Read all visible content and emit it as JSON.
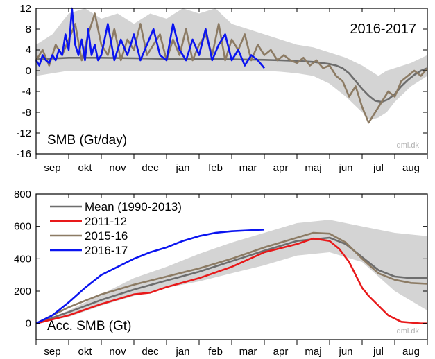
{
  "chart_data": [
    {
      "type": "line",
      "panel_label": "SMB (Gt/day)",
      "season_label": "2016-2017",
      "credit": "dmi.dk",
      "months": [
        "sep",
        "okt",
        "nov",
        "dec",
        "jan",
        "feb",
        "mar",
        "apr",
        "maj",
        "jun",
        "jul",
        "aug"
      ],
      "ylim": [
        -16,
        12
      ],
      "yticks": [
        12,
        8,
        4,
        0,
        -4,
        -8,
        -12,
        -16
      ],
      "colors": {
        "mean": "#6d6d6d",
        "s2015_16": "#8c7b64",
        "s2016_17": "#0a14f0",
        "band": "#d4d4d4"
      },
      "band_x": [
        0,
        0.5,
        1,
        1.5,
        2,
        2.5,
        3,
        3.5,
        4,
        4.5,
        5,
        5.5,
        6,
        6.5,
        7,
        7.5,
        8,
        8.5,
        9,
        9.5,
        10,
        10.25,
        10.5,
        10.75,
        11,
        11.5,
        12
      ],
      "band_lo": [
        -1,
        -0.5,
        0,
        0,
        0,
        0,
        0,
        0,
        0,
        0,
        0,
        0,
        0,
        0,
        0,
        -0.2,
        -0.5,
        -1,
        -2.5,
        -5,
        -8,
        -9.5,
        -9,
        -8,
        -6,
        -3,
        -1
      ],
      "band_hi": [
        5,
        7,
        11,
        12,
        10,
        11,
        9,
        11,
        10,
        12,
        11,
        12,
        9,
        8,
        7,
        6,
        5,
        4.5,
        3.5,
        2.5,
        1,
        0,
        -1,
        0,
        0.5,
        1.5,
        3
      ],
      "series": [
        {
          "name": "mean",
          "x": [
            0,
            1,
            2,
            3,
            4,
            5,
            6,
            7,
            7.5,
            8,
            8.5,
            9,
            9.2,
            9.4,
            9.6,
            9.8,
            10,
            10.2,
            10.4,
            10.6,
            10.8,
            11,
            11.2,
            11.4,
            11.6,
            11.8,
            12
          ],
          "values": [
            2.2,
            2.5,
            2.5,
            2.4,
            2.3,
            2.3,
            2.2,
            2.1,
            2.0,
            1.9,
            1.7,
            1.3,
            1.0,
            0.5,
            -0.5,
            -2,
            -3.5,
            -4.8,
            -5.8,
            -6,
            -5.5,
            -4.5,
            -3,
            -1.8,
            -0.8,
            0,
            0.5
          ]
        },
        {
          "name": "2015-16",
          "x": [
            0,
            0.2,
            0.4,
            0.6,
            0.8,
            1,
            1.2,
            1.4,
            1.6,
            1.8,
            2,
            2.2,
            2.4,
            2.6,
            2.8,
            3,
            3.2,
            3.4,
            3.6,
            3.8,
            4,
            4.2,
            4.4,
            4.6,
            4.8,
            5,
            5.2,
            5.4,
            5.6,
            5.8,
            6,
            6.2,
            6.4,
            6.6,
            6.8,
            7,
            7.2,
            7.4,
            7.6,
            7.8,
            8,
            8.2,
            8.4,
            8.6,
            8.8,
            9,
            9.2,
            9.4,
            9.6,
            9.8,
            10,
            10.2,
            10.4,
            10.6,
            10.8,
            11,
            11.2,
            11.4,
            11.6,
            11.8,
            12
          ],
          "values": [
            2,
            4,
            1,
            5,
            3,
            6,
            9,
            2,
            7,
            11,
            5,
            3,
            8,
            2,
            6,
            4,
            9,
            3,
            5,
            7,
            2,
            6,
            3,
            8,
            2,
            5,
            7,
            3,
            9,
            2,
            6,
            4,
            7,
            2,
            5,
            3,
            4,
            2,
            3,
            2,
            1.5,
            2.5,
            1,
            2,
            0.5,
            1,
            -1,
            -2,
            -5,
            -3,
            -7,
            -10,
            -8,
            -6,
            -4,
            -5,
            -2,
            -1,
            0,
            -1,
            0.5
          ]
        },
        {
          "name": "2016-17",
          "x": [
            0,
            0.1,
            0.2,
            0.3,
            0.4,
            0.5,
            0.6,
            0.7,
            0.8,
            0.9,
            1,
            1.1,
            1.2,
            1.3,
            1.4,
            1.5,
            1.6,
            1.7,
            1.8,
            1.9,
            2,
            2.2,
            2.4,
            2.6,
            2.8,
            3,
            3.2,
            3.4,
            3.6,
            3.8,
            4,
            4.2,
            4.4,
            4.6,
            4.8,
            5,
            5.2,
            5.4,
            5.6,
            5.8,
            6,
            6.2,
            6.4,
            6.6,
            6.8,
            7
          ],
          "values": [
            2,
            1,
            3,
            2,
            1.5,
            3,
            2,
            4,
            3,
            7,
            4,
            12,
            5,
            3,
            6,
            2,
            8,
            3,
            5,
            2,
            3,
            9,
            2,
            6,
            3,
            7,
            2,
            5,
            8,
            3,
            2,
            9,
            4,
            2,
            6,
            3,
            8,
            2,
            5,
            7,
            2,
            4,
            1,
            3,
            2,
            0.5
          ]
        }
      ]
    },
    {
      "type": "line",
      "panel_label": "Acc. SMB (Gt)",
      "credit": "dmi.dk",
      "months": [
        "sep",
        "okt",
        "nov",
        "dec",
        "jan",
        "feb",
        "mar",
        "apr",
        "maj",
        "jun",
        "jul",
        "aug"
      ],
      "ylim": [
        -100,
        800
      ],
      "yticks": [
        800,
        600,
        400,
        200,
        0
      ],
      "legend_position": "top-left",
      "colors": {
        "mean": "#6d6d6d",
        "s2011_12": "#e8191a",
        "s2015_16": "#8c7b64",
        "s2016_17": "#0a14f0",
        "band": "#d4d4d4"
      },
      "band_x": [
        0,
        1,
        2,
        3,
        4,
        5,
        6,
        7,
        8,
        9,
        10,
        11,
        12
      ],
      "band_lo": [
        0,
        40,
        110,
        170,
        220,
        260,
        310,
        360,
        420,
        440,
        380,
        200,
        80
      ],
      "band_hi": [
        0,
        80,
        180,
        280,
        350,
        430,
        500,
        560,
        620,
        640,
        600,
        560,
        540
      ],
      "series": [
        {
          "name": "Mean (1990-2013)",
          "x": [
            0,
            1,
            2,
            3,
            4,
            5,
            6,
            7,
            8,
            9,
            9.5,
            10,
            10.5,
            11,
            11.5,
            12
          ],
          "values": [
            0,
            70,
            145,
            210,
            265,
            320,
            385,
            450,
            510,
            530,
            490,
            410,
            330,
            290,
            280,
            280
          ]
        },
        {
          "name": "2011-12",
          "x": [
            0,
            1,
            2,
            3,
            3.5,
            4,
            5,
            6,
            7,
            8,
            8.5,
            9,
            9.3,
            9.6,
            9.8,
            10,
            10.2,
            10.5,
            10.8,
            11,
            11.2,
            11.5,
            11.8,
            12
          ],
          "values": [
            0,
            50,
            120,
            180,
            190,
            225,
            280,
            350,
            440,
            490,
            525,
            510,
            460,
            380,
            300,
            220,
            170,
            110,
            50,
            30,
            10,
            5,
            0,
            0
          ]
        },
        {
          "name": "2015-16",
          "x": [
            0,
            1,
            2,
            3,
            4,
            5,
            6,
            7,
            7.5,
            8,
            8.5,
            9,
            9.5,
            10,
            10.5,
            11,
            11.5,
            12
          ],
          "values": [
            0,
            100,
            180,
            240,
            290,
            340,
            400,
            470,
            500,
            530,
            560,
            555,
            500,
            400,
            310,
            270,
            250,
            245
          ]
        },
        {
          "name": "2016-17",
          "x": [
            0,
            0.5,
            1,
            1.5,
            2,
            2.5,
            3,
            3.5,
            4,
            4.5,
            5,
            5.5,
            6,
            6.5,
            7
          ],
          "values": [
            0,
            50,
            130,
            220,
            300,
            350,
            400,
            440,
            470,
            510,
            540,
            560,
            570,
            575,
            580
          ]
        }
      ]
    }
  ]
}
